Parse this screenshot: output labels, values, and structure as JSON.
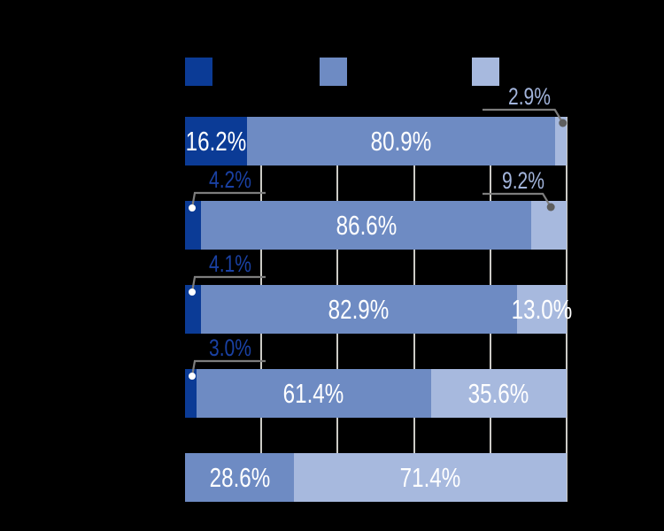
{
  "background_color": "#000000",
  "legend": {
    "labels_visible": false,
    "swatches": [
      {
        "name": "series-1-swatch",
        "color": "#0b3b96"
      },
      {
        "name": "series-2-swatch",
        "color": "#6e8bc3"
      },
      {
        "name": "series-3-swatch",
        "color": "#a7b9de"
      }
    ]
  },
  "chart_data": {
    "type": "bar",
    "orientation": "horizontal-stacked",
    "unit": "%",
    "title": "",
    "xlabel": "",
    "ylabel": "",
    "xlim": [
      0,
      100
    ],
    "grid": true,
    "gridline_percents": [
      20,
      40,
      60,
      80,
      100
    ],
    "axis_tick_labels_visible": false,
    "category_labels_visible": false,
    "categories": [
      "",
      "",
      "",
      "",
      ""
    ],
    "series": [
      {
        "color": "#0b3b96",
        "values": [
          16.2,
          4.2,
          4.1,
          3.0,
          null
        ]
      },
      {
        "color": "#6e8bc3",
        "values": [
          80.9,
          86.6,
          82.9,
          61.4,
          28.6
        ]
      },
      {
        "color": "#a7b9de",
        "values": [
          2.9,
          9.2,
          13.0,
          35.6,
          71.4
        ]
      }
    ],
    "data_labels": [
      [
        "16.2%",
        "80.9%",
        "2.9%"
      ],
      [
        "4.2%",
        "86.6%",
        "9.2%"
      ],
      [
        "4.1%",
        "82.9%",
        "13.0%"
      ],
      [
        "3.0%",
        "61.4%",
        "35.6%"
      ],
      [
        null,
        "28.6%",
        "71.4%"
      ]
    ]
  },
  "style_colors": {
    "gridline": "#cccbc6",
    "inside_label_text": "#ffffff",
    "callout_line": "#7d7d7d",
    "callout_dot_gray": "#5e5e5e",
    "callout_dot_white": "#ffffff",
    "dark_callout_text": "#1a41a4",
    "light_callout_text": "#a3b5dc"
  }
}
